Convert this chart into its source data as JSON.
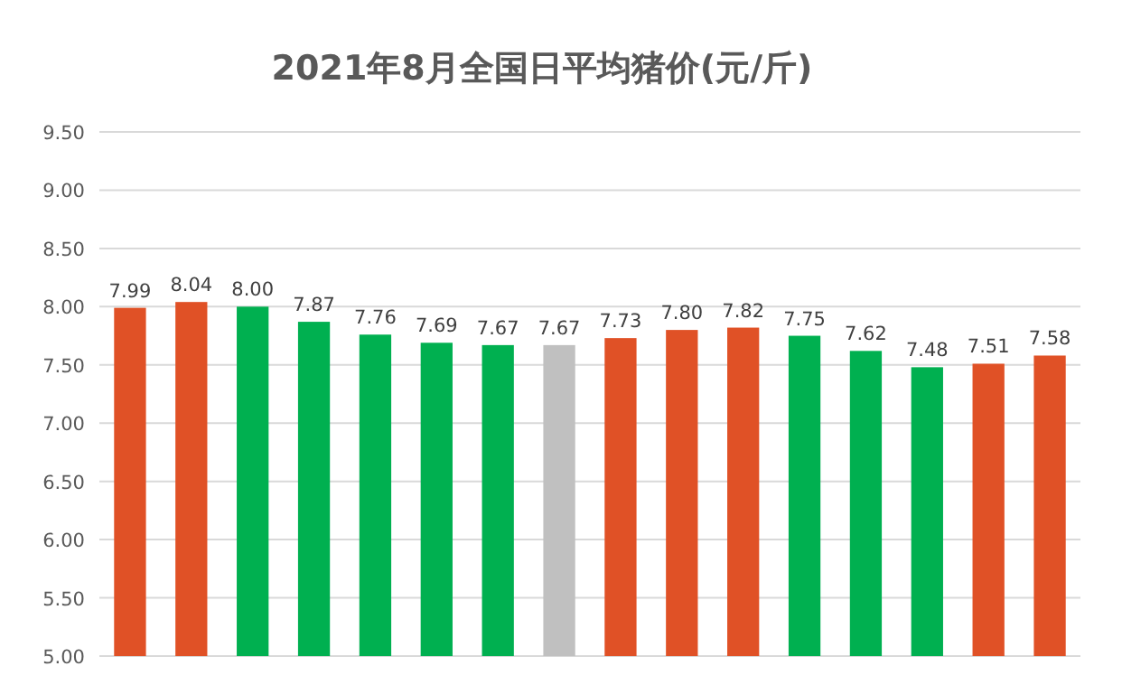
{
  "chart_data": {
    "type": "bar",
    "title": "2021年8月全国日平均猪价(元/斤)",
    "categories": [
      null,
      null,
      null,
      null,
      null,
      null,
      null,
      null,
      null,
      null,
      null,
      null,
      null,
      null,
      null,
      null
    ],
    "values": [
      7.99,
      8.04,
      8.0,
      7.87,
      7.76,
      7.69,
      7.67,
      7.67,
      7.73,
      7.8,
      7.82,
      7.75,
      7.62,
      7.48,
      7.51,
      7.58
    ],
    "value_labels": [
      "7.99",
      "8.04",
      "8.00",
      "7.87",
      "7.76",
      "7.69",
      "7.67",
      "7.67",
      "7.73",
      "7.80",
      "7.82",
      "7.75",
      "7.62",
      "7.48",
      "7.51",
      "7.58"
    ],
    "colors": [
      "#e05126",
      "#e05126",
      "#00b050",
      "#00b050",
      "#00b050",
      "#00b050",
      "#00b050",
      "#c0c0c0",
      "#e05126",
      "#e05126",
      "#e05126",
      "#00b050",
      "#00b050",
      "#00b050",
      "#e05126",
      "#e05126"
    ],
    "ylim": [
      5,
      9.5
    ],
    "yticks": [
      {
        "value": 5,
        "label": "5.00"
      },
      {
        "value": 5.5,
        "label": "5.50"
      },
      {
        "value": 6,
        "label": "6.00"
      },
      {
        "value": 6.5,
        "label": "6.50"
      },
      {
        "value": 7,
        "label": "7.00"
      },
      {
        "value": 7.5,
        "label": "7.50"
      },
      {
        "value": 8,
        "label": "8.00"
      },
      {
        "value": 8.5,
        "label": "8.50"
      },
      {
        "value": 9,
        "label": "9.00"
      },
      {
        "value": 9.5,
        "label": "9.50"
      }
    ],
    "grid": "y"
  }
}
